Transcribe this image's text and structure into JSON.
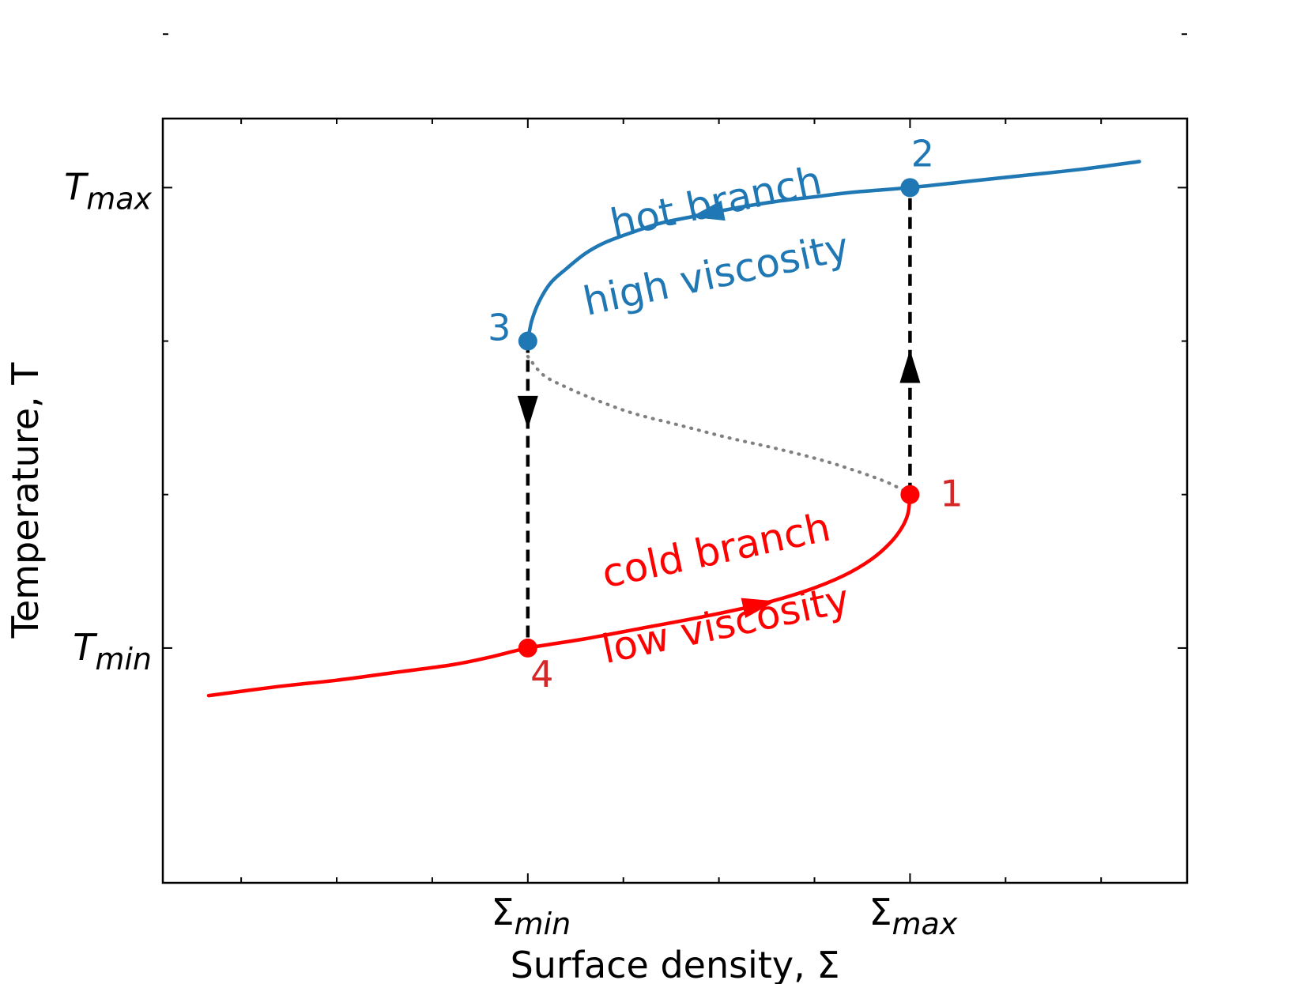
{
  "chart_data": {
    "type": "line",
    "title": "",
    "xlabel": "Surface density, Σ",
    "ylabel": "Temperature, T",
    "xlim": [
      -1.91,
      3.45
    ],
    "ylim": [
      -1.53,
      3.45
    ],
    "x_ticks": [
      {
        "value": 0,
        "base": "Σ",
        "sub": "min"
      },
      {
        "value": 2,
        "base": "Σ",
        "sub": "max"
      }
    ],
    "x_minor_ticks": [
      -1.5,
      -1.0,
      -0.5,
      0.5,
      1.0,
      1.5,
      2.5,
      3.0
    ],
    "y_ticks": [
      {
        "value": 0,
        "base": "T",
        "sub": "min"
      },
      {
        "value": 3,
        "base": "T",
        "sub": "max"
      }
    ],
    "y_minor_ticks": [
      1,
      2,
      4
    ],
    "series": [
      {
        "name": "hot branch",
        "role": "hot",
        "color": "#1f77b4",
        "style": "solid",
        "x": [
          0,
          0.02,
          0.06,
          0.12,
          0.2,
          0.3,
          0.4,
          0.55,
          0.7,
          0.9,
          1.1,
          1.3,
          1.5,
          1.7,
          2.0,
          2.3,
          2.6,
          2.9,
          3.2
        ],
        "y": [
          2.0,
          2.13,
          2.26,
          2.38,
          2.47,
          2.57,
          2.64,
          2.71,
          2.77,
          2.82,
          2.87,
          2.91,
          2.94,
          2.97,
          3.0,
          3.04,
          3.08,
          3.12,
          3.17
        ]
      },
      {
        "name": "cold branch",
        "role": "cold",
        "color": "#ff0000",
        "style": "solid",
        "x": [
          -1.67,
          -1.3,
          -1.0,
          -0.7,
          -0.4,
          -0.2,
          0,
          0.3,
          0.6,
          0.9,
          1.2,
          1.45,
          1.65,
          1.8,
          1.9,
          1.96,
          1.99,
          2.0
        ],
        "y": [
          -0.31,
          -0.25,
          -0.21,
          -0.16,
          -0.11,
          -0.06,
          0.0,
          0.06,
          0.13,
          0.2,
          0.28,
          0.37,
          0.47,
          0.58,
          0.69,
          0.79,
          0.88,
          1.0
        ]
      },
      {
        "name": "unstable branch",
        "role": "unstable",
        "color": "#808080",
        "style": "dotted",
        "x": [
          0,
          0.08,
          0.2,
          0.35,
          0.55,
          0.8,
          1.05,
          1.3,
          1.55,
          1.75,
          1.88,
          1.96,
          2.0
        ],
        "y": [
          1.9,
          1.78,
          1.7,
          1.62,
          1.53,
          1.45,
          1.37,
          1.3,
          1.22,
          1.14,
          1.08,
          1.03,
          1.0
        ]
      }
    ],
    "transitions": [
      {
        "name": "heating transition",
        "x": 2,
        "y_from": 1,
        "y_to": 3,
        "arrow_at": 1.82,
        "direction": "up"
      },
      {
        "name": "cooling transition",
        "x": 0,
        "y_from": 2,
        "y_to": 0,
        "arrow_at": 1.55,
        "direction": "down"
      }
    ],
    "branch_arrows": [
      {
        "series": "hot",
        "x": 0.95,
        "direction": "left"
      },
      {
        "series": "cold",
        "x": 1.2,
        "direction": "right"
      }
    ],
    "points": [
      {
        "label": "1",
        "x": 2,
        "y": 1,
        "color": "#ff0000",
        "label_color": "#d62728"
      },
      {
        "label": "2",
        "x": 2,
        "y": 3,
        "color": "#1f77b4",
        "label_color": "#1f77b4"
      },
      {
        "label": "3",
        "x": 0,
        "y": 2,
        "color": "#1f77b4",
        "label_color": "#1f77b4"
      },
      {
        "label": "4",
        "x": 0,
        "y": 0,
        "color": "#ff0000",
        "label_color": "#d62728"
      }
    ],
    "annotations": [
      {
        "text": "hot branch",
        "x": 1.0,
        "y": 2.82,
        "color": "#1f77b4"
      },
      {
        "text": "high viscosity",
        "x": 1.0,
        "y": 2.35,
        "color": "#1f77b4"
      },
      {
        "text": "cold branch",
        "x": 1.0,
        "y": 0.55,
        "color": "#ff0000"
      },
      {
        "text": "low viscosity",
        "x": 1.05,
        "y": 0.07,
        "color": "#ff0000"
      }
    ]
  }
}
